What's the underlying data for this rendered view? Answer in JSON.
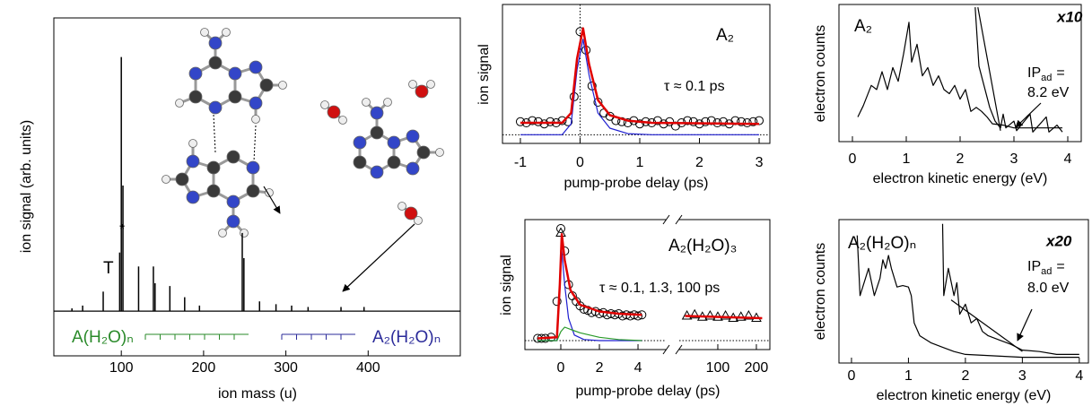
{
  "chart_data": [
    {
      "type": "spectrum",
      "xlabel": "ion mass (u)",
      "ylabel": "ion signal (arb. units)",
      "x": [
        40,
        53,
        78,
        98,
        100,
        102,
        121,
        139,
        141,
        159,
        177,
        195,
        247,
        249,
        268,
        288,
        307,
        327,
        367,
        395
      ],
      "values": [
        1,
        2,
        7,
        21,
        91,
        45,
        16,
        16,
        10,
        9,
        5,
        2,
        28,
        19,
        3.5,
        2.5,
        2,
        1.5,
        1.5,
        1.5
      ],
      "color": "#000000",
      "xlim": [
        18,
        512
      ],
      "ylim": [
        -16,
        105
      ],
      "xticks": [
        100,
        200,
        300,
        400
      ],
      "annotations": [
        "T",
        "*",
        "A(H₂O)ₙ",
        "A₂(H₂O)ₙ"
      ]
    },
    {
      "type": "line",
      "label": "A₂",
      "annotation": "τ ≈ 0.1 ps",
      "xlabel": "pump-probe delay (ps)",
      "ylabel": "ion signal",
      "xlim": [
        -1.3,
        3.18
      ],
      "ylim": [
        -0.08,
        1.2
      ],
      "xticks": [
        -1,
        0,
        1,
        2,
        3
      ],
      "zero_line_y": true,
      "zero_line_x": true,
      "series": [
        {
          "marker": "circle",
          "color": "#000000",
          "x": [
            -1,
            -0.9,
            -0.8,
            -0.7,
            -0.6,
            -0.5,
            -0.4,
            -0.3,
            -0.2,
            -0.1,
            0,
            0.1,
            0.2,
            0.3,
            0.4,
            0.5,
            0.6,
            0.7,
            0.8,
            0.9,
            1,
            1.1,
            1.2,
            1.3,
            1.4,
            1.5,
            1.6,
            1.7,
            1.8,
            1.9,
            2,
            2.1,
            2.2,
            2.3,
            2.4,
            2.5,
            2.6,
            2.7,
            2.8,
            2.9,
            3
          ],
          "values": [
            0.12,
            0.11,
            0.13,
            0.12,
            0.1,
            0.12,
            0.11,
            0.13,
            0.12,
            0.35,
            0.95,
            0.78,
            0.45,
            0.3,
            0.2,
            0.17,
            0.13,
            0.12,
            0.11,
            0.13,
            0.1,
            0.12,
            0.11,
            0.13,
            0.1,
            0.12,
            0.08,
            0.11,
            0.13,
            0.12,
            0.1,
            0.12,
            0.13,
            0.11,
            0.12,
            0.1,
            0.13,
            0.12,
            0.11,
            0.12,
            0.13
          ]
        },
        {
          "color": "#1f1fd0",
          "x": [
            -1,
            -0.3,
            -0.15,
            -0.05,
            0.05,
            0.15,
            0.3,
            0.5,
            0.8,
            1.2,
            3
          ],
          "values": [
            0,
            0,
            0.1,
            0.6,
            0.88,
            0.55,
            0.2,
            0.06,
            0.01,
            0,
            0
          ]
        },
        {
          "color": "#e00000",
          "x": [
            -1,
            -0.3,
            -0.15,
            -0.05,
            0.05,
            0.15,
            0.3,
            0.5,
            0.8,
            1.2,
            3
          ],
          "values": [
            0.11,
            0.11,
            0.2,
            0.7,
            0.98,
            0.65,
            0.32,
            0.18,
            0.13,
            0.11,
            0.1
          ]
        }
      ]
    },
    {
      "type": "line",
      "label": "A₂(H₂O)₃",
      "annotation": "τ ≈ 0.1, 1.3, 100 ps",
      "xlabel": "pump-probe delay (ps)",
      "ylabel": "ion signal",
      "xlim": [
        -1.86,
        5.44
      ],
      "x2lim": [
        0,
        235
      ],
      "ylim": [
        -0.08,
        1.08
      ],
      "xticks": [
        0,
        2,
        4
      ],
      "x2ticks": [
        100,
        200
      ],
      "zero_line_y": true,
      "series": [
        {
          "marker": "circle",
          "color": "#000000",
          "x": [
            -1.2,
            -1,
            -0.8,
            -0.5,
            -0.2,
            0,
            0.2,
            0.4,
            0.6,
            0.8,
            1,
            1.2,
            1.4,
            1.6,
            1.8,
            2,
            2.2,
            2.4,
            2.6,
            2.8,
            3,
            3.2,
            3.4,
            3.6,
            3.8,
            4,
            4.2
          ],
          "values": [
            0.02,
            0.02,
            0.02,
            0.03,
            0.35,
            1,
            0.8,
            0.5,
            0.4,
            0.35,
            0.31,
            0.28,
            0.27,
            0.25,
            0.26,
            0.24,
            0.25,
            0.23,
            0.24,
            0.23,
            0.24,
            0.22,
            0.23,
            0.22,
            0.23,
            0.22,
            0.23
          ]
        },
        {
          "marker": "triangle",
          "color": "#000000",
          "x": [
            0
          ],
          "values": [
            0.96
          ]
        },
        {
          "marker": "triangle",
          "color": "#000000",
          "axis": "x2",
          "x": [
            20,
            40,
            60,
            80,
            100,
            120,
            140,
            160,
            180,
            200
          ],
          "values": [
            0.22,
            0.23,
            0.21,
            0.22,
            0.21,
            0.22,
            0.2,
            0.21,
            0.22,
            0.2
          ]
        },
        {
          "color": "#1f1fd0",
          "x": [
            -1.2,
            -0.2,
            -0.05,
            0.05,
            0.2,
            0.4,
            0.7,
            1.2,
            2,
            4.2
          ],
          "values": [
            0,
            0,
            0.45,
            0.8,
            0.5,
            0.2,
            0.05,
            0.01,
            0,
            0
          ]
        },
        {
          "color": "#2a9a2a",
          "x": [
            -1.2,
            -0.2,
            0,
            0.2,
            0.5,
            1,
            2,
            3,
            4.2
          ],
          "values": [
            0,
            0,
            0.08,
            0.12,
            0.1,
            0.07,
            0.03,
            0.01,
            0
          ]
        },
        {
          "color": "#e00000",
          "x": [
            -1.2,
            -0.2,
            -0.05,
            0.05,
            0.2,
            0.5,
            1,
            2,
            3,
            4.2
          ],
          "values": [
            0.02,
            0.03,
            0.5,
            0.95,
            0.72,
            0.45,
            0.32,
            0.26,
            0.24,
            0.23
          ]
        },
        {
          "color": "#e00000",
          "axis": "x2",
          "x": [
            15,
            215
          ],
          "values": [
            0.22,
            0.2
          ]
        }
      ]
    },
    {
      "type": "line",
      "label": "A₂",
      "scale_label": "x10",
      "ip": [
        "IP",
        "ad",
        "=",
        "8.2 eV"
      ],
      "xlabel": "electron kinetic energy (eV)",
      "ylabel": "electron counts",
      "xlim": [
        -0.25,
        4.25
      ],
      "ylim": [
        0,
        1
      ],
      "xticks": [
        0,
        1,
        2,
        3,
        4
      ],
      "series": [
        {
          "color": "#000000",
          "x": [
            0.1,
            0.2,
            0.35,
            0.45,
            0.55,
            0.65,
            0.75,
            0.85,
            0.95,
            1.05,
            1.1,
            1.2,
            1.3,
            1.4,
            1.5,
            1.6,
            1.7,
            1.8,
            1.9,
            2,
            2.1,
            2.2,
            2.3,
            2.4,
            2.5,
            2.6,
            2.8,
            3,
            3.2,
            3.5,
            3.9
          ],
          "values": [
            0.18,
            0.26,
            0.41,
            0.38,
            0.51,
            0.38,
            0.54,
            0.44,
            0.64,
            0.87,
            0.58,
            0.71,
            0.48,
            0.54,
            0.41,
            0.48,
            0.38,
            0.35,
            0.41,
            0.31,
            0.38,
            0.22,
            0.25,
            0.22,
            0.18,
            0.13,
            0.12,
            0.1,
            0.1,
            0.1,
            0.1
          ]
        },
        {
          "color": "#000000",
          "x": [
            2.28,
            2.35,
            2.45,
            2.55,
            2.65,
            2.75,
            2.8,
            2.85,
            3,
            3.05,
            3.3,
            3.35,
            3.6,
            3.65,
            3.8,
            3.9
          ],
          "values": [
            0.98,
            0.55,
            0.4,
            0.25,
            0.15,
            0.1,
            0.2,
            0.1,
            0.15,
            0.08,
            0.2,
            0.07,
            0.18,
            0.07,
            0.12,
            0.07
          ]
        },
        {
          "color": "#000000",
          "x": [
            2.33,
            2.75
          ],
          "values": [
            0.98,
            0.08
          ]
        }
      ]
    },
    {
      "type": "line",
      "label": "A₂(H₂O)ₙ",
      "scale_label": "x20",
      "ip": [
        "IP",
        "ad",
        "=",
        "8.0 eV"
      ],
      "xlabel": "electron kinetic energy (eV)",
      "ylabel": "electron counts",
      "xlim": [
        -0.22,
        4.16
      ],
      "ylim": [
        0,
        1
      ],
      "xticks": [
        0,
        1,
        2,
        3,
        4
      ],
      "series": [
        {
          "color": "#000000",
          "x": [
            0.1,
            0.15,
            0.3,
            0.4,
            0.5,
            0.55,
            0.6,
            0.65,
            0.7,
            0.8,
            0.9,
            1,
            1.05,
            1.1,
            1.2,
            1.4,
            1.6,
            1.8,
            2,
            2.5,
            3,
            3.5,
            4
          ],
          "values": [
            0.89,
            0.47,
            0.66,
            0.47,
            0.59,
            0.72,
            0.66,
            0.75,
            0.66,
            0.53,
            0.54,
            0.53,
            0.47,
            0.28,
            0.19,
            0.14,
            0.11,
            0.08,
            0.06,
            0.05,
            0.04,
            0.04,
            0.04
          ]
        },
        {
          "color": "#000000",
          "x": [
            1.6,
            1.62,
            1.7,
            1.8,
            1.85,
            1.9,
            2,
            2.1,
            2.2,
            2.3,
            2.4,
            2.6,
            2.8,
            3,
            3.3,
            3.6,
            4
          ],
          "values": [
            0.97,
            0.47,
            0.66,
            0.47,
            0.56,
            0.34,
            0.41,
            0.28,
            0.31,
            0.22,
            0.19,
            0.16,
            0.13,
            0.09,
            0.08,
            0.06,
            0.06
          ]
        },
        {
          "color": "#000000",
          "x": [
            1.75,
            3
          ],
          "values": [
            0.44,
            0.08
          ]
        }
      ]
    }
  ]
}
